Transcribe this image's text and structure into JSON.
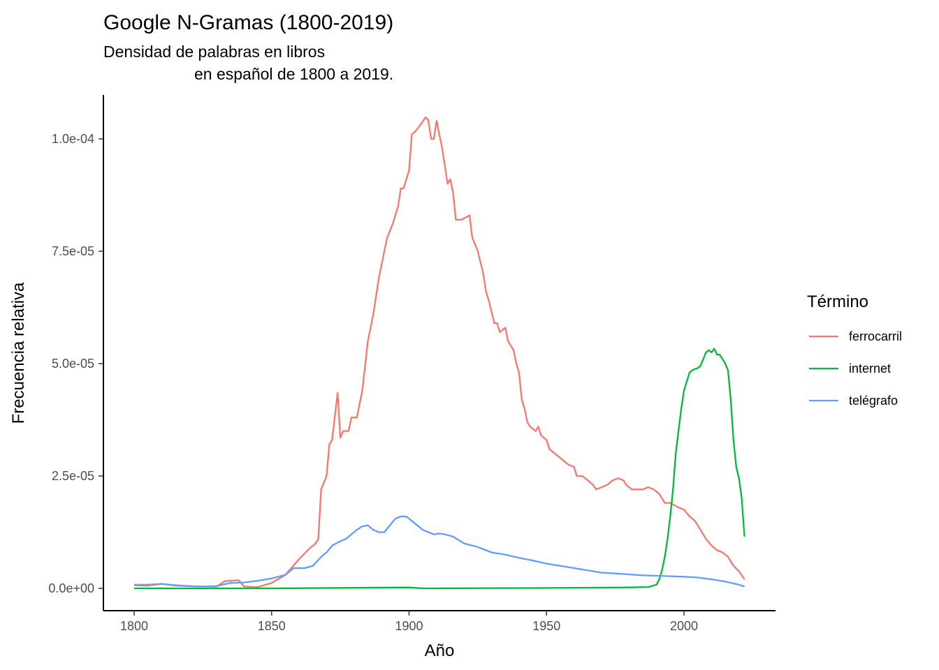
{
  "chart_data": {
    "type": "line",
    "title": "Google N-Gramas (1800-2019)",
    "subtitle": [
      "Densidad de palabras en libros",
      "en español de 1800 a 2019."
    ],
    "xlabel": "Año",
    "ylabel": "Frecuencia relativa",
    "xlim": [
      1800,
      2022
    ],
    "ylim": [
      0,
      0.000105
    ],
    "x_ticks": [
      1800,
      1850,
      1900,
      1950,
      2000
    ],
    "x_tick_labels": [
      "1800",
      "1850",
      "1900",
      "1950",
      "2000"
    ],
    "y_ticks": [
      0,
      2.5e-05,
      5e-05,
      7.5e-05,
      0.0001
    ],
    "y_tick_labels": [
      "0.0e+00",
      "2.5e-05",
      "5.0e-05",
      "7.5e-05",
      "1.0e-04"
    ],
    "grid": false,
    "legend": {
      "title": "Término",
      "position": "right"
    },
    "series": [
      {
        "name": "ferrocarril",
        "color": "#F8766D",
        "points": [
          [
            1800,
            8e-07
          ],
          [
            1805,
            8e-07
          ],
          [
            1810,
            1e-06
          ],
          [
            1815,
            6e-07
          ],
          [
            1820,
            5e-07
          ],
          [
            1825,
            4e-07
          ],
          [
            1830,
            4e-07
          ],
          [
            1833,
            1.6e-06
          ],
          [
            1838,
            1.8e-06
          ],
          [
            1840,
            4e-07
          ],
          [
            1845,
            3e-07
          ],
          [
            1850,
            1.2e-06
          ],
          [
            1855,
            3e-06
          ],
          [
            1860,
            6.5e-06
          ],
          [
            1864,
            9e-06
          ],
          [
            1866,
            1e-05
          ],
          [
            1867,
            1.1e-05
          ],
          [
            1868,
            2.2e-05
          ],
          [
            1870,
            2.5e-05
          ],
          [
            1871,
            3.2e-05
          ],
          [
            1872,
            3.3e-05
          ],
          [
            1874,
            4.35e-05
          ],
          [
            1875,
            3.35e-05
          ],
          [
            1876,
            3.5e-05
          ],
          [
            1878,
            3.5e-05
          ],
          [
            1879,
            3.8e-05
          ],
          [
            1881,
            3.8e-05
          ],
          [
            1883,
            4.4e-05
          ],
          [
            1885,
            5.5e-05
          ],
          [
            1887,
            6.1e-05
          ],
          [
            1889,
            6.9e-05
          ],
          [
            1890,
            7.2e-05
          ],
          [
            1892,
            7.8e-05
          ],
          [
            1894,
            8.1e-05
          ],
          [
            1896,
            8.5e-05
          ],
          [
            1897,
            8.9e-05
          ],
          [
            1898,
            8.9e-05
          ],
          [
            1900,
            9.3e-05
          ],
          [
            1901,
            0.000101
          ],
          [
            1902,
            0.0001015
          ],
          [
            1904,
            0.000103
          ],
          [
            1906,
            0.0001048
          ],
          [
            1907,
            0.0001042
          ],
          [
            1908,
            0.0001
          ],
          [
            1909,
            0.0001
          ],
          [
            1910,
            0.000104
          ],
          [
            1912,
            9.8e-05
          ],
          [
            1913,
            9.4e-05
          ],
          [
            1914,
            9e-05
          ],
          [
            1915,
            9.1e-05
          ],
          [
            1916,
            8.8e-05
          ],
          [
            1917,
            8.2e-05
          ],
          [
            1919,
            8.2e-05
          ],
          [
            1922,
            8.3e-05
          ],
          [
            1923,
            7.8e-05
          ],
          [
            1925,
            7.5e-05
          ],
          [
            1927,
            7e-05
          ],
          [
            1928,
            6.6e-05
          ],
          [
            1929,
            6.4e-05
          ],
          [
            1931,
            5.9e-05
          ],
          [
            1932,
            5.9e-05
          ],
          [
            1933,
            5.7e-05
          ],
          [
            1935,
            5.8e-05
          ],
          [
            1936,
            5.5e-05
          ],
          [
            1938,
            5.3e-05
          ],
          [
            1939,
            5e-05
          ],
          [
            1940,
            4.8e-05
          ],
          [
            1941,
            4.2e-05
          ],
          [
            1942,
            4e-05
          ],
          [
            1943,
            3.7e-05
          ],
          [
            1944,
            3.6e-05
          ],
          [
            1946,
            3.5e-05
          ],
          [
            1947,
            3.6e-05
          ],
          [
            1948,
            3.4e-05
          ],
          [
            1950,
            3.3e-05
          ],
          [
            1951,
            3.1e-05
          ],
          [
            1953,
            3e-05
          ],
          [
            1955,
            2.9e-05
          ],
          [
            1957,
            2.8e-05
          ],
          [
            1958,
            2.75e-05
          ],
          [
            1960,
            2.7e-05
          ],
          [
            1961,
            2.5e-05
          ],
          [
            1963,
            2.5e-05
          ],
          [
            1965,
            2.4e-05
          ],
          [
            1967,
            2.3e-05
          ],
          [
            1968,
            2.2e-05
          ],
          [
            1970,
            2.25e-05
          ],
          [
            1972,
            2.3e-05
          ],
          [
            1974,
            2.4e-05
          ],
          [
            1976,
            2.45e-05
          ],
          [
            1978,
            2.4e-05
          ],
          [
            1979,
            2.3e-05
          ],
          [
            1981,
            2.2e-05
          ],
          [
            1983,
            2.2e-05
          ],
          [
            1985,
            2.2e-05
          ],
          [
            1987,
            2.25e-05
          ],
          [
            1989,
            2.2e-05
          ],
          [
            1991,
            2.1e-05
          ],
          [
            1993,
            1.9e-05
          ],
          [
            1995,
            1.9e-05
          ],
          [
            1998,
            1.8e-05
          ],
          [
            2000,
            1.75e-05
          ],
          [
            2002,
            1.6e-05
          ],
          [
            2004,
            1.5e-05
          ],
          [
            2006,
            1.3e-05
          ],
          [
            2008,
            1.1e-05
          ],
          [
            2010,
            9.5e-06
          ],
          [
            2012,
            8.5e-06
          ],
          [
            2014,
            8e-06
          ],
          [
            2016,
            7e-06
          ],
          [
            2018,
            5e-06
          ],
          [
            2020,
            3.8e-06
          ],
          [
            2022,
            2e-06
          ]
        ]
      },
      {
        "name": "internet",
        "color": "#00BA38",
        "points": [
          [
            1800,
            0.0
          ],
          [
            1850,
            0.0
          ],
          [
            1900,
            2e-07
          ],
          [
            1905,
            0.0
          ],
          [
            1950,
            1e-07
          ],
          [
            1980,
            2e-07
          ],
          [
            1987,
            3e-07
          ],
          [
            1990,
            8e-07
          ],
          [
            1991,
            2e-06
          ],
          [
            1992,
            4e-06
          ],
          [
            1993,
            7e-06
          ],
          [
            1994,
            1.1e-05
          ],
          [
            1995,
            1.6e-05
          ],
          [
            1996,
            2.2e-05
          ],
          [
            1997,
            3e-05
          ],
          [
            1998,
            3.5e-05
          ],
          [
            1999,
            4e-05
          ],
          [
            2000,
            4.4e-05
          ],
          [
            2001,
            4.6e-05
          ],
          [
            2002,
            4.8e-05
          ],
          [
            2003,
            4.85e-05
          ],
          [
            2004,
            4.88e-05
          ],
          [
            2005,
            4.9e-05
          ],
          [
            2006,
            4.95e-05
          ],
          [
            2007,
            5.1e-05
          ],
          [
            2008,
            5.25e-05
          ],
          [
            2009,
            5.3e-05
          ],
          [
            2010,
            5.25e-05
          ],
          [
            2011,
            5.33e-05
          ],
          [
            2012,
            5.2e-05
          ],
          [
            2013,
            5.2e-05
          ],
          [
            2014,
            5.1e-05
          ],
          [
            2015,
            5e-05
          ],
          [
            2016,
            4.85e-05
          ],
          [
            2017,
            4.2e-05
          ],
          [
            2018,
            3.3e-05
          ],
          [
            2019,
            2.7e-05
          ],
          [
            2020,
            2.45e-05
          ],
          [
            2021,
            2e-05
          ],
          [
            2022,
            1.15e-05
          ]
        ]
      },
      {
        "name": "telégrafo",
        "color": "#619CFF",
        "points": [
          [
            1800,
            7e-07
          ],
          [
            1805,
            6e-07
          ],
          [
            1810,
            1e-06
          ],
          [
            1815,
            7e-07
          ],
          [
            1820,
            5e-07
          ],
          [
            1825,
            4e-07
          ],
          [
            1830,
            5e-07
          ],
          [
            1835,
            1.2e-06
          ],
          [
            1840,
            1.3e-06
          ],
          [
            1845,
            1.7e-06
          ],
          [
            1850,
            2.2e-06
          ],
          [
            1855,
            3e-06
          ],
          [
            1858,
            4.5e-06
          ],
          [
            1862,
            4.5e-06
          ],
          [
            1865,
            5e-06
          ],
          [
            1868,
            7e-06
          ],
          [
            1870,
            8e-06
          ],
          [
            1872,
            9.5e-06
          ],
          [
            1875,
            1.05e-05
          ],
          [
            1877,
            1.1e-05
          ],
          [
            1879,
            1.2e-05
          ],
          [
            1881,
            1.3e-05
          ],
          [
            1883,
            1.38e-05
          ],
          [
            1885,
            1.4e-05
          ],
          [
            1887,
            1.3e-05
          ],
          [
            1889,
            1.25e-05
          ],
          [
            1891,
            1.25e-05
          ],
          [
            1893,
            1.4e-05
          ],
          [
            1895,
            1.55e-05
          ],
          [
            1897,
            1.6e-05
          ],
          [
            1899,
            1.6e-05
          ],
          [
            1901,
            1.5e-05
          ],
          [
            1903,
            1.4e-05
          ],
          [
            1905,
            1.3e-05
          ],
          [
            1907,
            1.25e-05
          ],
          [
            1909,
            1.2e-05
          ],
          [
            1911,
            1.22e-05
          ],
          [
            1913,
            1.2e-05
          ],
          [
            1916,
            1.15e-05
          ],
          [
            1920,
            1e-05
          ],
          [
            1925,
            9.2e-06
          ],
          [
            1930,
            8e-06
          ],
          [
            1935,
            7.5e-06
          ],
          [
            1940,
            6.8e-06
          ],
          [
            1945,
            6.2e-06
          ],
          [
            1950,
            5.5e-06
          ],
          [
            1955,
            5e-06
          ],
          [
            1960,
            4.5e-06
          ],
          [
            1965,
            4e-06
          ],
          [
            1970,
            3.5e-06
          ],
          [
            1975,
            3.3e-06
          ],
          [
            1980,
            3.1e-06
          ],
          [
            1985,
            2.9e-06
          ],
          [
            1990,
            2.8e-06
          ],
          [
            1995,
            2.7e-06
          ],
          [
            2000,
            2.6e-06
          ],
          [
            2005,
            2.4e-06
          ],
          [
            2010,
            2e-06
          ],
          [
            2015,
            1.5e-06
          ],
          [
            2020,
            8e-07
          ],
          [
            2022,
            4e-07
          ]
        ]
      }
    ]
  }
}
